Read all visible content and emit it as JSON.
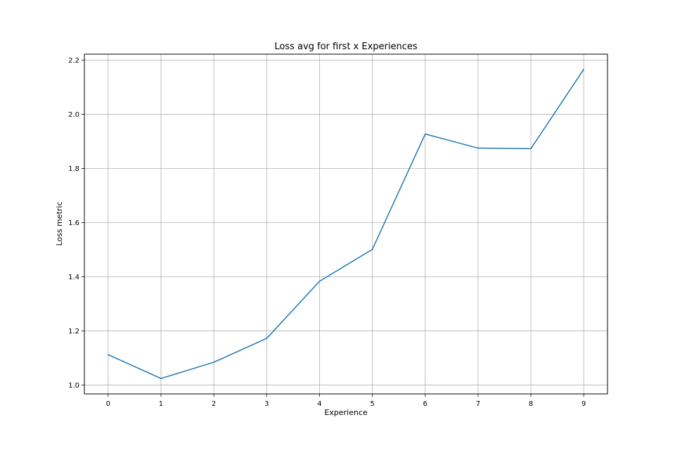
{
  "chart_data": {
    "type": "line",
    "title": "Loss avg for first x Experiences",
    "xlabel": "Experience",
    "ylabel": "Loss metric",
    "x": [
      0,
      1,
      2,
      3,
      4,
      5,
      6,
      7,
      8,
      9
    ],
    "xticks": [
      "0",
      "1",
      "2",
      "3",
      "4",
      "5",
      "6",
      "7",
      "8",
      "9"
    ],
    "yticks": [
      "1.0",
      "1.2",
      "1.4",
      "1.6",
      "1.8",
      "2.0",
      "2.2"
    ],
    "xlim": [
      -0.45,
      9.45
    ],
    "ylim": [
      0.967,
      2.222
    ],
    "grid": true,
    "legend": "none",
    "series": [
      {
        "color": "#1f77b4",
        "values": [
          1.112,
          1.024,
          1.084,
          1.172,
          1.383,
          1.501,
          1.927,
          1.875,
          1.873,
          2.166
        ]
      }
    ]
  }
}
